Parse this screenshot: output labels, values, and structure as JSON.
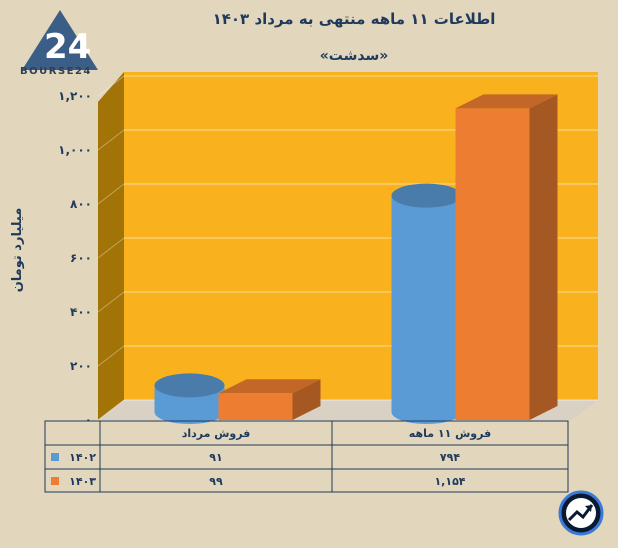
{
  "header": {
    "title": "اطلاعات ۱۱ ماهه منتهی به مرداد ۱۴۰۳",
    "subtitle": "«سدشت»",
    "logo_text": "BOURSE24"
  },
  "chart_data": {
    "type": "bar",
    "title": "اطلاعات ۱۱ ماهه منتهی به مرداد ۱۴۰۳",
    "subtitle": "«سدشت»",
    "ylabel": "میلیارد تومان",
    "ylim": [
      0,
      1200
    ],
    "yticks": [
      "۰",
      "۲۰۰",
      "۴۰۰",
      "۶۰۰",
      "۸۰۰",
      "۱,۰۰۰",
      "۱,۲۰۰"
    ],
    "ytick_values": [
      0,
      200,
      400,
      600,
      800,
      1000,
      1200
    ],
    "categories": [
      "فروش مرداد",
      "فروش ۱۱ ماهه"
    ],
    "series": [
      {
        "name": "۱۴۰۲",
        "values": [
          91,
          794
        ],
        "labels": [
          "۹۱",
          "۷۹۴"
        ],
        "color": "#5b9bd5"
      },
      {
        "name": "۱۴۰۳",
        "values": [
          99,
          1154
        ],
        "labels": [
          "۹۹",
          "۱,۱۵۴"
        ],
        "color": "#ed7d31"
      }
    ],
    "grid": true,
    "background_color": "#f9b21d",
    "legend": "table-left"
  }
}
